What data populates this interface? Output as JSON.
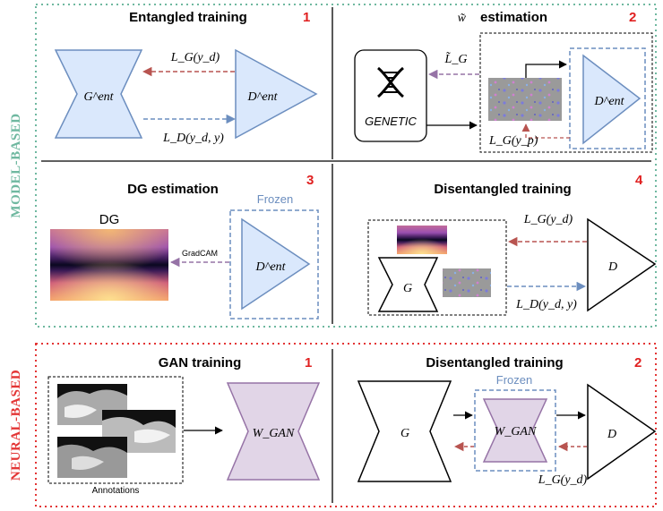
{
  "side_labels": {
    "model_based": "MODEL-BASED",
    "neural_based": "NEURAL-BASED"
  },
  "colors": {
    "model_border": "#6fb8a0",
    "neural_border": "#e33535",
    "blue_fill": "#dae8fc",
    "blue_stroke": "#6c8ebf",
    "purple_fill": "#e1d5e7",
    "purple_stroke": "#9673a6",
    "step_number": "#e02020",
    "arrow_red": "#b85450",
    "arrow_blue": "#6c8ebf",
    "arrow_purple": "#9673a6",
    "frozen": "#6c8ebf"
  },
  "panels": {
    "p1": {
      "title": "Entangled training",
      "number": "1",
      "generator": "G^ent",
      "discriminator": "D^ent",
      "loss_top": "L_G(y_d)",
      "loss_bottom": "L_D(y_d, y)"
    },
    "p2": {
      "title_symbol": "w̃",
      "title": "estimation",
      "number": "2",
      "genetic_label": "GENETIC",
      "loss": "L̃_G",
      "small_loss": "L_G(y_p)",
      "discriminator": "D^ent",
      "icons": [
        "dna-icon"
      ]
    },
    "p3": {
      "title": "DG estimation",
      "number": "3",
      "heatmap_label": "DG",
      "arrow_label": "GradCAM",
      "frozen": "Frozen",
      "discriminator": "D^ent"
    },
    "p4": {
      "title": "Disentangled training",
      "number": "4",
      "generator": "G",
      "discriminator": "D",
      "loss_top": "L_G(y_d)",
      "loss_bottom": "L_D(y_d, y)"
    },
    "n1": {
      "title": "GAN training",
      "number": "1",
      "annotations_label": "Annotations",
      "network": "W_GAN"
    },
    "n2": {
      "title": "Disentangled training",
      "number": "2",
      "frozen": "Frozen",
      "generator": "G",
      "network": "W_GAN",
      "discriminator": "D",
      "loss": "L_G(y_d)"
    }
  }
}
